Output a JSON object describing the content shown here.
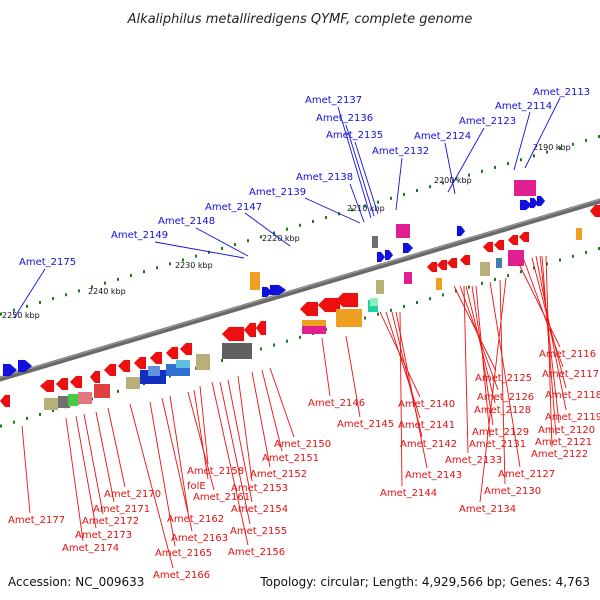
{
  "title": "Alkaliphilus metalliredigens QYMF, complete genome",
  "footer": {
    "accession": "Accession: NC_009633",
    "topology": "Topology: circular; Length: 4,929,566 bp; Genes: 4,763"
  },
  "colors": {
    "forward_label": "#1010d8",
    "reverse_label": "#e01010",
    "backbone": "#666666",
    "tick": "#1a7a1a"
  },
  "scale_labels": [
    "2190 kbp",
    "2200 kbp",
    "2210 kbp",
    "2220 kbp",
    "2230 kbp",
    "2240 kbp",
    "2250 kbp"
  ],
  "forward_genes": [
    "Amet_2113",
    "Amet_2114",
    "Amet_2123",
    "Amet_2124",
    "Amet_2132",
    "Amet_2135",
    "Amet_2136",
    "Amet_2137",
    "Amet_2138",
    "Amet_2139",
    "Amet_2147",
    "Amet_2148",
    "Amet_2149",
    "Amet_2175"
  ],
  "reverse_genes": [
    "Amet_2116",
    "Amet_2117",
    "Amet_2118",
    "Amet_2119",
    "Amet_2120",
    "Amet_2121",
    "Amet_2122",
    "Amet_2125",
    "Amet_2126",
    "Amet_2128",
    "Amet_2129",
    "Amet_2131",
    "Amet_2133",
    "Amet_2127",
    "Amet_2130",
    "Amet_2134",
    "Amet_2140",
    "Amet_2141",
    "Amet_2142",
    "Amet_2143",
    "Amet_2144",
    "Amet_2145",
    "Amet_2146",
    "Amet_2150",
    "Amet_2151",
    "Amet_2152",
    "Amet_2153",
    "Amet_2154",
    "Amet_2155",
    "Amet_2156",
    "Amet_2158",
    "folE",
    "Amet_2161",
    "Amet_2162",
    "Amet_2163",
    "Amet_2165",
    "Amet_2166",
    "Amet_2170",
    "Amet_2171",
    "Amet_2172",
    "Amet_2173",
    "Amet_2174",
    "Amet_2177"
  ]
}
